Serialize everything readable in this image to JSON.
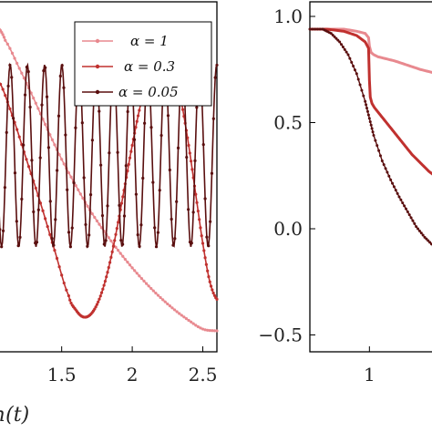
{
  "chart_data": [
    {
      "type": "line",
      "title": "",
      "xlabel": "h(t)",
      "ylabel": "",
      "xlim": [
        1.05,
        2.6
      ],
      "x_ticks": [
        1.5,
        2,
        2.5
      ],
      "x_tick_labels": [
        "1.5",
        "2",
        "2.5"
      ],
      "grid": false,
      "legend": "top-right",
      "series": [
        {
          "name": "α = 1",
          "label_text": "α = 1",
          "color": "#e8898f",
          "x": [
            1.05,
            1.1,
            1.2,
            1.3,
            1.4,
            1.5,
            1.6,
            1.7,
            1.8,
            1.9,
            2.0,
            2.1,
            2.2,
            2.3,
            2.4,
            2.5,
            2.6
          ],
          "y": [
            0.85,
            0.78,
            0.62,
            0.45,
            0.27,
            0.1,
            -0.05,
            -0.19,
            -0.31,
            -0.42,
            -0.52,
            -0.61,
            -0.69,
            -0.76,
            -0.82,
            -0.87,
            -0.88
          ]
        },
        {
          "name": "α = 0.3",
          "label_text": "α = 0.3",
          "color": "#c0312f",
          "x": [
            1.05,
            1.15,
            1.25,
            1.35,
            1.45,
            1.55,
            1.6,
            1.65,
            1.7,
            1.75,
            1.8,
            1.85,
            1.9,
            1.95,
            2.0,
            2.05,
            2.1,
            2.15,
            2.2,
            2.25,
            2.3,
            2.35,
            2.4,
            2.45,
            2.5,
            2.55,
            2.6
          ],
          "y": [
            0.55,
            0.35,
            0.1,
            -0.15,
            -0.42,
            -0.68,
            -0.76,
            -0.8,
            -0.79,
            -0.73,
            -0.62,
            -0.46,
            -0.26,
            -0.04,
            0.18,
            0.38,
            0.55,
            0.66,
            0.72,
            0.7,
            0.6,
            0.42,
            0.18,
            -0.1,
            -0.38,
            -0.6,
            -0.7
          ]
        },
        {
          "name": "α = 0.05",
          "label_text": "α = 0.05",
          "color": "#5a0f0f",
          "x0": 1.05,
          "x1": 2.6,
          "amplitude": 0.52,
          "offset": 0.12,
          "frequency_cycles_per_unit": 8.2,
          "phase": 1.9
        }
      ]
    },
    {
      "type": "line",
      "title": "",
      "xlabel": "",
      "ylabel": "",
      "xlim": [
        0.3,
        1.8
      ],
      "ylim": [
        -0.6,
        1.0
      ],
      "x_ticks": [
        1
      ],
      "x_tick_labels": [
        "1"
      ],
      "y_ticks": [
        1.0,
        0.5,
        0.0,
        -0.5
      ],
      "y_tick_labels": [
        "1.0",
        "0.5",
        "0.0",
        "−0.5"
      ],
      "grid": false,
      "series": [
        {
          "name": "α = 1",
          "color": "#e8898f",
          "x": [
            0.3,
            0.5,
            0.7,
            0.85,
            0.95,
            0.99,
            1.0,
            1.02,
            1.05,
            1.1,
            1.2,
            1.3,
            1.45,
            1.6,
            1.8
          ],
          "y": [
            0.94,
            0.94,
            0.94,
            0.93,
            0.92,
            0.9,
            0.86,
            0.83,
            0.82,
            0.81,
            0.8,
            0.79,
            0.77,
            0.75,
            0.73
          ]
        },
        {
          "name": "α = 0.3",
          "color": "#c0312f",
          "x": [
            0.3,
            0.5,
            0.7,
            0.85,
            0.95,
            0.99,
            1.0,
            1.01,
            1.03,
            1.06,
            1.1,
            1.2,
            1.3,
            1.4,
            1.5,
            1.6,
            1.7,
            1.8
          ],
          "y": [
            0.94,
            0.94,
            0.93,
            0.91,
            0.88,
            0.85,
            0.7,
            0.62,
            0.59,
            0.57,
            0.55,
            0.5,
            0.45,
            0.4,
            0.35,
            0.31,
            0.27,
            0.24
          ]
        },
        {
          "name": "α = 0.05",
          "color": "#5a0f0f",
          "x": [
            0.3,
            0.45,
            0.55,
            0.65,
            0.75,
            0.85,
            0.95,
            1.0,
            1.05,
            1.15,
            1.25,
            1.35,
            1.45,
            1.55,
            1.65,
            1.75,
            1.8
          ],
          "y": [
            0.94,
            0.94,
            0.92,
            0.88,
            0.82,
            0.73,
            0.6,
            0.52,
            0.44,
            0.32,
            0.23,
            0.15,
            0.08,
            0.01,
            -0.04,
            -0.08,
            -0.1
          ]
        }
      ]
    }
  ]
}
